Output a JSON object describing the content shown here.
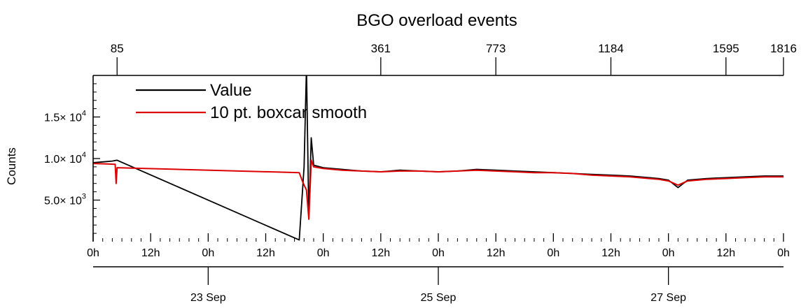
{
  "chart_data": {
    "type": "line",
    "title": "BGO overload events",
    "ylabel": "Counts",
    "xlabel": "",
    "ylim": [
      0,
      20000
    ],
    "xlim": [
      0,
      144
    ],
    "x_unit": "hours since 22 Sep 00:00",
    "grid": false,
    "legend_position": "top-left",
    "top_axis": {
      "ticks": [
        {
          "x": 5,
          "label": "85"
        },
        {
          "x": 60,
          "label": "361"
        },
        {
          "x": 84,
          "label": "773"
        },
        {
          "x": 108,
          "label": "1184"
        },
        {
          "x": 132,
          "label": "1595"
        },
        {
          "x": 144,
          "label": "1816"
        }
      ]
    },
    "y_ticks": [
      {
        "value": 5000,
        "mantissa": "5.0",
        "exp": "3"
      },
      {
        "value": 10000,
        "mantissa": "1.0",
        "exp": "4"
      },
      {
        "value": 15000,
        "mantissa": "1.5",
        "exp": "4"
      }
    ],
    "x_ticks": [
      {
        "x": 0,
        "label": "0h"
      },
      {
        "x": 12,
        "label": "12h"
      },
      {
        "x": 24,
        "label": "0h"
      },
      {
        "x": 36,
        "label": "12h"
      },
      {
        "x": 48,
        "label": "0h"
      },
      {
        "x": 60,
        "label": "12h"
      },
      {
        "x": 72,
        "label": "0h"
      },
      {
        "x": 84,
        "label": "12h"
      },
      {
        "x": 96,
        "label": "0h"
      },
      {
        "x": 108,
        "label": "12h"
      },
      {
        "x": 120,
        "label": "0h"
      },
      {
        "x": 132,
        "label": "12h"
      },
      {
        "x": 144,
        "label": "0h"
      }
    ],
    "date_ticks": [
      {
        "x": 24,
        "label": "23 Sep"
      },
      {
        "x": 72,
        "label": "25 Sep"
      },
      {
        "x": 120,
        "label": "27 Sep"
      }
    ],
    "series": [
      {
        "name": "Value",
        "color": "#000000",
        "points": [
          [
            0,
            9500
          ],
          [
            2,
            9600
          ],
          [
            4,
            9700
          ],
          [
            5,
            9800
          ],
          [
            43,
            200
          ],
          [
            44,
            9000
          ],
          [
            44.5,
            21000
          ],
          [
            45,
            2800
          ],
          [
            45.5,
            12500
          ],
          [
            46,
            9200
          ],
          [
            48,
            8900
          ],
          [
            52,
            8700
          ],
          [
            56,
            8500
          ],
          [
            60,
            8400
          ],
          [
            64,
            8600
          ],
          [
            68,
            8500
          ],
          [
            72,
            8400
          ],
          [
            76,
            8500
          ],
          [
            80,
            8700
          ],
          [
            84,
            8600
          ],
          [
            88,
            8500
          ],
          [
            92,
            8400
          ],
          [
            96,
            8300
          ],
          [
            100,
            8200
          ],
          [
            104,
            8100
          ],
          [
            108,
            8000
          ],
          [
            112,
            7900
          ],
          [
            116,
            7700
          ],
          [
            118,
            7600
          ],
          [
            120,
            7400
          ],
          [
            122,
            6500
          ],
          [
            124,
            7400
          ],
          [
            128,
            7600
          ],
          [
            132,
            7700
          ],
          [
            136,
            7800
          ],
          [
            140,
            7900
          ],
          [
            144,
            7900
          ]
        ]
      },
      {
        "name": "10 pt. boxcar smooth",
        "color": "#dd0000",
        "points": [
          [
            0,
            9400
          ],
          [
            3,
            9350
          ],
          [
            4.6,
            9300
          ],
          [
            4.8,
            7000
          ],
          [
            5,
            8900
          ],
          [
            43,
            8300
          ],
          [
            43.7,
            7200
          ],
          [
            44.5,
            6200
          ],
          [
            45,
            2700
          ],
          [
            45.5,
            9800
          ],
          [
            46,
            9000
          ],
          [
            48,
            8800
          ],
          [
            52,
            8600
          ],
          [
            56,
            8500
          ],
          [
            60,
            8400
          ],
          [
            64,
            8500
          ],
          [
            68,
            8500
          ],
          [
            72,
            8400
          ],
          [
            76,
            8500
          ],
          [
            80,
            8600
          ],
          [
            84,
            8500
          ],
          [
            88,
            8400
          ],
          [
            92,
            8300
          ],
          [
            96,
            8300
          ],
          [
            100,
            8200
          ],
          [
            104,
            8000
          ],
          [
            108,
            7900
          ],
          [
            112,
            7800
          ],
          [
            116,
            7600
          ],
          [
            118,
            7500
          ],
          [
            120,
            7300
          ],
          [
            122,
            6800
          ],
          [
            124,
            7300
          ],
          [
            128,
            7500
          ],
          [
            132,
            7600
          ],
          [
            136,
            7700
          ],
          [
            140,
            7800
          ],
          [
            144,
            7800
          ]
        ]
      }
    ]
  }
}
